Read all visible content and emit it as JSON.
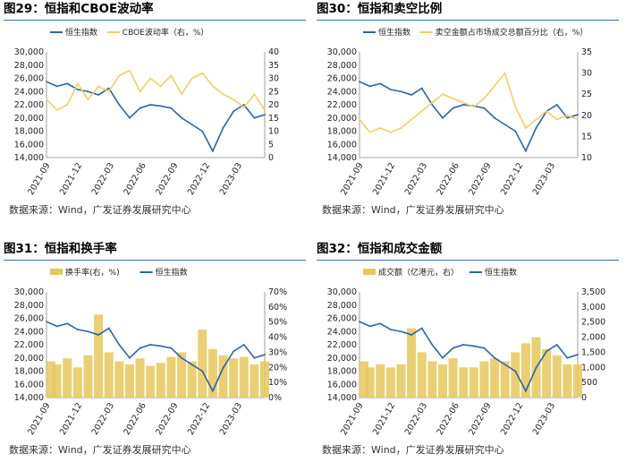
{
  "panels": [
    {
      "title": "图29：恒指和CBOE波动率",
      "source": "数据来源：Wind，广发证券发展研究中心",
      "chart_data": {
        "type": "line",
        "title": "恒指和CBOE波动率",
        "x_ticks": [
          "2021-09",
          "2021-12",
          "2022-03",
          "2022-06",
          "2022-09",
          "2022-12",
          "2023-03"
        ],
        "y_left": {
          "min": 14000,
          "max": 30000,
          "step": 2000,
          "ticks": [
            "14,000",
            "16,000",
            "18,000",
            "20,000",
            "22,000",
            "24,000",
            "26,000",
            "28,000",
            "30,000"
          ]
        },
        "y_right": {
          "min": 0,
          "max": 40,
          "step": 5,
          "ticks": [
            "0",
            "5",
            "10",
            "15",
            "20",
            "25",
            "30",
            "35",
            "40"
          ]
        },
        "legend": "top",
        "grid": false,
        "series": [
          {
            "name": "恒生指数",
            "axis": "left",
            "color": "#2a64aa",
            "x": [
              0,
              1,
              2,
              3,
              4,
              5,
              6,
              7,
              8,
              9,
              10,
              11,
              12,
              13,
              14,
              15,
              16,
              17,
              18,
              19,
              20,
              21
            ],
            "values": [
              25500,
              24800,
              25200,
              24300,
              24000,
              23500,
              24500,
              22000,
              20000,
              21500,
              22000,
              21800,
              21500,
              20000,
              19000,
              18000,
              15000,
              18500,
              21000,
              22000,
              20000,
              20500
            ]
          },
          {
            "name": "CBOE波动率（右，%）",
            "axis": "right",
            "color": "#f0d060",
            "x": [
              0,
              1,
              2,
              3,
              4,
              5,
              6,
              7,
              8,
              9,
              10,
              11,
              12,
              13,
              14,
              15,
              16,
              17,
              18,
              19,
              20,
              21
            ],
            "values": [
              22,
              18,
              20,
              28,
              22,
              27,
              25,
              31,
              33,
              25,
              30,
              27,
              31,
              24,
              30,
              32,
              27,
              24,
              22,
              19,
              24,
              18
            ]
          }
        ]
      }
    },
    {
      "title": "图30：恒指和卖空比例",
      "source": "数据来源：Wind，广发证券发展研究中心",
      "chart_data": {
        "type": "line",
        "title": "恒指和卖空比例",
        "x_ticks": [
          "2021-09",
          "2021-12",
          "2022-03",
          "2022-06",
          "2022-09",
          "2022-12",
          "2023-03"
        ],
        "y_left": {
          "min": 14000,
          "max": 30000,
          "step": 2000,
          "ticks": [
            "14,000",
            "16,000",
            "18,000",
            "20,000",
            "22,000",
            "24,000",
            "26,000",
            "28,000",
            "30,000"
          ]
        },
        "y_right": {
          "min": 10,
          "max": 35,
          "step": 5,
          "ticks": [
            "10",
            "15",
            "20",
            "25",
            "30",
            "35"
          ]
        },
        "legend": "top",
        "grid": false,
        "series": [
          {
            "name": "恒生指数",
            "axis": "left",
            "color": "#2a64aa",
            "x": [
              0,
              1,
              2,
              3,
              4,
              5,
              6,
              7,
              8,
              9,
              10,
              11,
              12,
              13,
              14,
              15,
              16,
              17,
              18,
              19,
              20,
              21
            ],
            "values": [
              25500,
              24800,
              25200,
              24300,
              24000,
              23500,
              24500,
              22000,
              20000,
              21500,
              22000,
              21800,
              21500,
              20000,
              19000,
              18000,
              15000,
              18500,
              21000,
              22000,
              20000,
              20500
            ]
          },
          {
            "name": "卖空金额占市场成交总额百分比（右，%）",
            "axis": "right",
            "color": "#f0d060",
            "x": [
              0,
              1,
              2,
              3,
              4,
              5,
              6,
              7,
              8,
              9,
              10,
              11,
              12,
              13,
              14,
              15,
              16,
              17,
              18,
              19,
              20,
              21
            ],
            "values": [
              19,
              16,
              17,
              16,
              17,
              19,
              21,
              23,
              25,
              24,
              23,
              22,
              24,
              27,
              30,
              22,
              17,
              19,
              21,
              19,
              20,
              19
            ]
          }
        ]
      }
    },
    {
      "title": "图31：恒指和换手率",
      "source": "数据来源：Wind，广发证券发展研究中心",
      "chart_data": {
        "type": "bar",
        "title": "恒指和换手率",
        "x_ticks": [
          "2021-09",
          "2021-12",
          "2022-03",
          "2022-06",
          "2022-09",
          "2022-12",
          "2023-03"
        ],
        "y_left": {
          "min": 14000,
          "max": 30000,
          "step": 2000,
          "ticks": [
            "14,000",
            "16,000",
            "18,000",
            "20,000",
            "22,000",
            "24,000",
            "26,000",
            "28,000",
            "30,000"
          ]
        },
        "y_right": {
          "min": 0,
          "max": 70,
          "step": 10,
          "ticks": [
            "0%",
            "10%",
            "20%",
            "30%",
            "40%",
            "50%",
            "60%",
            "70%"
          ]
        },
        "legend": "top",
        "grid": false,
        "series": [
          {
            "name": "换手率(右，%)",
            "axis": "right",
            "kind": "bar",
            "color": "#e6c85a",
            "x": [
              0,
              1,
              2,
              3,
              4,
              5,
              6,
              7,
              8,
              9,
              10,
              11,
              12,
              13,
              14,
              15,
              16,
              17,
              18,
              19,
              20,
              21
            ],
            "values": [
              24,
              22,
              26,
              20,
              28,
              55,
              30,
              24,
              22,
              26,
              21,
              23,
              27,
              30,
              24,
              45,
              32,
              28,
              26,
              27,
              22,
              24
            ]
          },
          {
            "name": "恒生指数",
            "axis": "left",
            "kind": "line",
            "color": "#2a64aa",
            "x": [
              0,
              1,
              2,
              3,
              4,
              5,
              6,
              7,
              8,
              9,
              10,
              11,
              12,
              13,
              14,
              15,
              16,
              17,
              18,
              19,
              20,
              21
            ],
            "values": [
              25500,
              24800,
              25200,
              24300,
              24000,
              23500,
              24500,
              22000,
              20000,
              21500,
              22000,
              21800,
              21500,
              20000,
              19000,
              18000,
              15000,
              18500,
              21000,
              22000,
              20000,
              20500
            ]
          }
        ]
      }
    },
    {
      "title": "图32：恒指和成交金额",
      "source": "数据来源：Wind，广发证券发展研究中心",
      "chart_data": {
        "type": "bar",
        "title": "恒指和成交金额",
        "x_ticks": [
          "2021-09",
          "2021-12",
          "2022-03",
          "2022-06",
          "2022-09",
          "2022-12",
          "2023-03"
        ],
        "y_left": {
          "min": 14000,
          "max": 30000,
          "step": 2000,
          "ticks": [
            "14,000",
            "16,000",
            "18,000",
            "20,000",
            "22,000",
            "24,000",
            "26,000",
            "28,000",
            "30,000"
          ]
        },
        "y_right": {
          "min": 0,
          "max": 3500,
          "step": 500,
          "ticks": [
            "0",
            "500",
            "1,000",
            "1,500",
            "2,000",
            "2,500",
            "3,000",
            "3,500"
          ]
        },
        "legend": "top",
        "grid": false,
        "series": [
          {
            "name": "成交额（亿港元，右）",
            "axis": "right",
            "kind": "bar",
            "color": "#e6c85a",
            "x": [
              0,
              1,
              2,
              3,
              4,
              5,
              6,
              7,
              8,
              9,
              10,
              11,
              12,
              13,
              14,
              15,
              16,
              17,
              18,
              19,
              20,
              21
            ],
            "values": [
              1200,
              1000,
              1100,
              1000,
              1100,
              2300,
              1500,
              1200,
              1100,
              1300,
              1000,
              1000,
              1200,
              1300,
              1200,
              1500,
              1800,
              2000,
              1600,
              1400,
              1100,
              1100
            ]
          },
          {
            "name": "恒生指数",
            "axis": "left",
            "kind": "line",
            "color": "#2a64aa",
            "x": [
              0,
              1,
              2,
              3,
              4,
              5,
              6,
              7,
              8,
              9,
              10,
              11,
              12,
              13,
              14,
              15,
              16,
              17,
              18,
              19,
              20,
              21
            ],
            "values": [
              25500,
              24800,
              25200,
              24300,
              24000,
              23500,
              24500,
              22000,
              20000,
              21500,
              22000,
              21800,
              21500,
              20000,
              19000,
              18000,
              15000,
              18500,
              21000,
              22000,
              20000,
              20500
            ]
          }
        ]
      }
    }
  ]
}
